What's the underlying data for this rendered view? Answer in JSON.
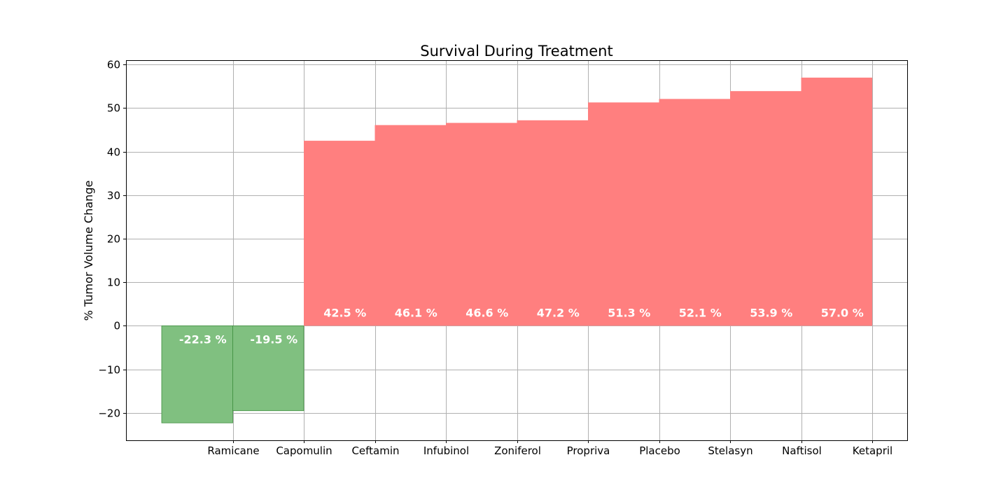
{
  "chart_data": {
    "type": "bar",
    "title": "Survival During Treatment",
    "xlabel": "",
    "ylabel": "% Tumor Volume Change",
    "categories": [
      "Ramicane",
      "Capomulin",
      "Ceftamin",
      "Infubinol",
      "Zoniferol",
      "Propriva",
      "Placebo",
      "Stelasyn",
      "Naftisol",
      "Ketapril"
    ],
    "values": [
      -22.3,
      -19.5,
      42.5,
      46.1,
      46.6,
      47.2,
      51.3,
      52.1,
      53.9,
      57.0
    ],
    "data_labels": [
      "-22.3 %",
      "-19.5 %",
      "42.5 %",
      "46.1 %",
      "46.6 %",
      "47.2 %",
      "51.3 %",
      "52.1 %",
      "53.9 %",
      "57.0 %"
    ],
    "y_ticks": [
      -20,
      -10,
      0,
      10,
      20,
      30,
      40,
      50,
      60
    ],
    "y_tick_labels": [
      "−20",
      "−10",
      "0",
      "10",
      "20",
      "30",
      "40",
      "50",
      "60"
    ],
    "ylim": [
      -26.3,
      61
    ],
    "grid": true,
    "colors": {
      "negative": "#80c080",
      "negative_edge": "#3f8f3f",
      "positive": "#ff7f7f"
    }
  }
}
